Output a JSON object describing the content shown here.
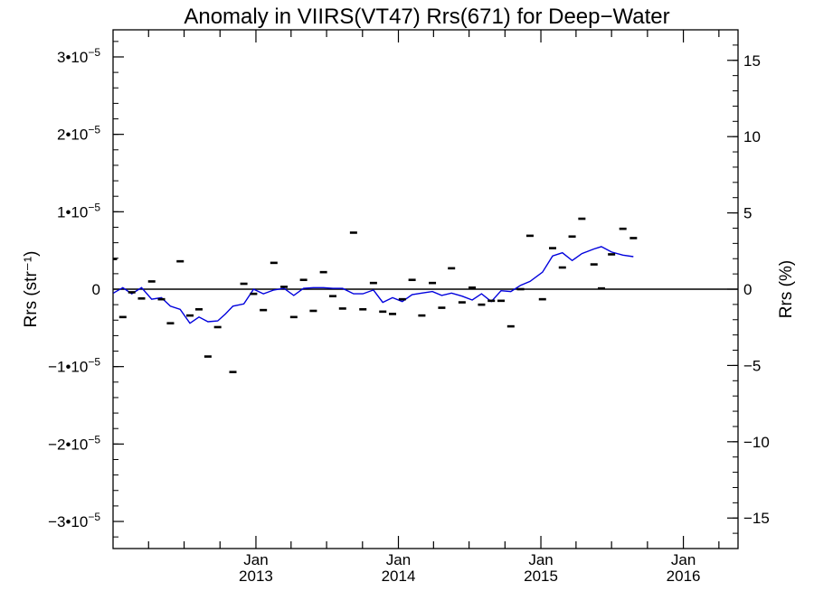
{
  "chart_data": {
    "type": "line",
    "title": "Anomaly in VIIRS(VT47) Rrs(671) for Deep−Water",
    "ylabel_left": "Rrs (str⁻¹)",
    "ylabel_right": "Rrs (%)",
    "xlabel": "",
    "x_axis": {
      "type": "date",
      "range": [
        "2012-01-01",
        "2016-05-20"
      ],
      "tick_labels": [
        {
          "line1": "Jan",
          "line2": "2013",
          "date": "2013-01-01"
        },
        {
          "line1": "Jan",
          "line2": "2014",
          "date": "2014-01-01"
        },
        {
          "line1": "Jan",
          "line2": "2015",
          "date": "2015-01-01"
        },
        {
          "line1": "Jan",
          "line2": "2016",
          "date": "2016-01-01"
        }
      ]
    },
    "y_left": {
      "range": [
        -3.35e-05,
        3.35e-05
      ],
      "ticks": [
        {
          "value": 3e-05,
          "mant": "3",
          "exp": "−5"
        },
        {
          "value": 2e-05,
          "mant": "2",
          "exp": "−5"
        },
        {
          "value": 1e-05,
          "mant": "1",
          "exp": "−5"
        },
        {
          "value": 0,
          "mant": "0",
          "exp": ""
        },
        {
          "value": -1e-05,
          "mant": "−1",
          "exp": "−5"
        },
        {
          "value": -2e-05,
          "mant": "−2",
          "exp": "−5"
        },
        {
          "value": -3e-05,
          "mant": "−3",
          "exp": "−5"
        }
      ]
    },
    "y_right": {
      "range": [
        -17,
        17
      ],
      "ticks": [
        {
          "value": 15,
          "label": "15"
        },
        {
          "value": 10,
          "label": "10"
        },
        {
          "value": 5,
          "label": "5"
        },
        {
          "value": 0,
          "label": "0"
        },
        {
          "value": -5,
          "label": "−5"
        },
        {
          "value": -10,
          "label": "−10"
        },
        {
          "value": -15,
          "label": "−15"
        }
      ]
    },
    "grid": false,
    "reference_line": 0,
    "series": [
      {
        "kind": "points",
        "values_left_axis": [
          {
            "x": "2012-01-02",
            "y": 3.9e-06
          },
          {
            "x": "2012-01-26",
            "y": -3.6e-06
          },
          {
            "x": "2012-02-18",
            "y": -4e-07
          },
          {
            "x": "2012-03-14",
            "y": -1.2e-06
          },
          {
            "x": "2012-04-09",
            "y": 1e-06
          },
          {
            "x": "2012-05-04",
            "y": -1.3e-06
          },
          {
            "x": "2012-05-27",
            "y": -4.4e-06
          },
          {
            "x": "2012-06-21",
            "y": 3.6e-06
          },
          {
            "x": "2012-07-16",
            "y": -3.4e-06
          },
          {
            "x": "2012-08-08",
            "y": -2.6e-06
          },
          {
            "x": "2012-08-31",
            "y": -8.7e-06
          },
          {
            "x": "2012-09-25",
            "y": -4.9e-06
          },
          {
            "x": "2012-11-03",
            "y": -1.07e-05
          },
          {
            "x": "2012-12-01",
            "y": 7e-07
          },
          {
            "x": "2012-12-26",
            "y": -6e-07
          },
          {
            "x": "2013-01-20",
            "y": -2.7e-06
          },
          {
            "x": "2013-02-16",
            "y": 3.4e-06
          },
          {
            "x": "2013-03-14",
            "y": 3e-07
          },
          {
            "x": "2013-04-08",
            "y": -3.6e-06
          },
          {
            "x": "2013-05-03",
            "y": 1.2e-06
          },
          {
            "x": "2013-05-28",
            "y": -2.8e-06
          },
          {
            "x": "2013-06-23",
            "y": 2.2e-06
          },
          {
            "x": "2013-07-17",
            "y": -9e-07
          },
          {
            "x": "2013-08-11",
            "y": -2.5e-06
          },
          {
            "x": "2013-09-08",
            "y": 7.3e-06
          },
          {
            "x": "2013-10-02",
            "y": -2.6e-06
          },
          {
            "x": "2013-10-29",
            "y": 8e-07
          },
          {
            "x": "2013-11-22",
            "y": -2.9e-06
          },
          {
            "x": "2013-12-17",
            "y": -3.2e-06
          },
          {
            "x": "2014-01-11",
            "y": -1.3e-06
          },
          {
            "x": "2014-02-05",
            "y": 1.2e-06
          },
          {
            "x": "2014-03-02",
            "y": -3.4e-06
          },
          {
            "x": "2014-03-29",
            "y": 8e-07
          },
          {
            "x": "2014-04-22",
            "y": -2.4e-06
          },
          {
            "x": "2014-05-17",
            "y": 2.7e-06
          },
          {
            "x": "2014-06-13",
            "y": -1.7e-06
          },
          {
            "x": "2014-07-09",
            "y": 2e-07
          },
          {
            "x": "2014-08-02",
            "y": -2e-06
          },
          {
            "x": "2014-08-27",
            "y": -1.5e-06
          },
          {
            "x": "2014-09-21",
            "y": -1.5e-06
          },
          {
            "x": "2014-10-16",
            "y": -4.8e-06
          },
          {
            "x": "2014-11-10",
            "y": 0
          },
          {
            "x": "2014-12-04",
            "y": 6.9e-06
          },
          {
            "x": "2015-01-05",
            "y": -1.3e-06
          },
          {
            "x": "2015-01-31",
            "y": 5.3e-06
          },
          {
            "x": "2015-02-25",
            "y": 2.8e-06
          },
          {
            "x": "2015-03-22",
            "y": 6.8e-06
          },
          {
            "x": "2015-04-16",
            "y": 9.1e-06
          },
          {
            "x": "2015-05-17",
            "y": 3.2e-06
          },
          {
            "x": "2015-06-05",
            "y": 1e-07
          },
          {
            "x": "2015-07-01",
            "y": 4.5e-06
          },
          {
            "x": "2015-07-30",
            "y": 7.8e-06
          },
          {
            "x": "2015-08-26",
            "y": 6.6e-06
          }
        ]
      },
      {
        "kind": "line",
        "color": "#0000dd",
        "values_left_axis": [
          {
            "x": "2012-01-02",
            "y": -5e-07
          },
          {
            "x": "2012-01-26",
            "y": 2e-07
          },
          {
            "x": "2012-02-18",
            "y": -6e-07
          },
          {
            "x": "2012-03-14",
            "y": 2e-07
          },
          {
            "x": "2012-04-09",
            "y": -1.3e-06
          },
          {
            "x": "2012-05-04",
            "y": -1.1e-06
          },
          {
            "x": "2012-05-27",
            "y": -2.2e-06
          },
          {
            "x": "2012-06-21",
            "y": -2.6e-06
          },
          {
            "x": "2012-07-16",
            "y": -4.4e-06
          },
          {
            "x": "2012-08-08",
            "y": -3.6e-06
          },
          {
            "x": "2012-08-31",
            "y": -4.2e-06
          },
          {
            "x": "2012-09-25",
            "y": -4.1e-06
          },
          {
            "x": "2012-10-15",
            "y": -3.2e-06
          },
          {
            "x": "2012-11-03",
            "y": -2.2e-06
          },
          {
            "x": "2012-12-01",
            "y": -1.9e-06
          },
          {
            "x": "2012-12-26",
            "y": 0
          },
          {
            "x": "2013-01-20",
            "y": -6e-07
          },
          {
            "x": "2013-02-16",
            "y": -1e-07
          },
          {
            "x": "2013-03-14",
            "y": 1e-07
          },
          {
            "x": "2013-04-08",
            "y": -8e-07
          },
          {
            "x": "2013-05-03",
            "y": 1e-07
          },
          {
            "x": "2013-05-28",
            "y": 2e-07
          },
          {
            "x": "2013-06-23",
            "y": 2e-07
          },
          {
            "x": "2013-07-17",
            "y": 1e-07
          },
          {
            "x": "2013-08-11",
            "y": 1e-07
          },
          {
            "x": "2013-09-08",
            "y": -6e-07
          },
          {
            "x": "2013-10-02",
            "y": -6e-07
          },
          {
            "x": "2013-10-29",
            "y": -1e-07
          },
          {
            "x": "2013-11-22",
            "y": -1.7e-06
          },
          {
            "x": "2013-12-17",
            "y": -1.1e-06
          },
          {
            "x": "2014-01-11",
            "y": -1.6e-06
          },
          {
            "x": "2014-02-05",
            "y": -7e-07
          },
          {
            "x": "2014-03-02",
            "y": -5e-07
          },
          {
            "x": "2014-03-29",
            "y": -3e-07
          },
          {
            "x": "2014-04-22",
            "y": -8e-07
          },
          {
            "x": "2014-05-17",
            "y": -5e-07
          },
          {
            "x": "2014-06-13",
            "y": -9e-07
          },
          {
            "x": "2014-07-09",
            "y": -1.4e-06
          },
          {
            "x": "2014-08-02",
            "y": -6e-07
          },
          {
            "x": "2014-08-27",
            "y": -1.6e-06
          },
          {
            "x": "2014-09-21",
            "y": -2e-07
          },
          {
            "x": "2014-10-16",
            "y": -3e-07
          },
          {
            "x": "2014-11-10",
            "y": 5e-07
          },
          {
            "x": "2014-12-04",
            "y": 1e-06
          },
          {
            "x": "2015-01-05",
            "y": 2.2e-06
          },
          {
            "x": "2015-01-31",
            "y": 4.3e-06
          },
          {
            "x": "2015-02-25",
            "y": 4.7e-06
          },
          {
            "x": "2015-03-22",
            "y": 3.7e-06
          },
          {
            "x": "2015-04-16",
            "y": 4.6e-06
          },
          {
            "x": "2015-05-17",
            "y": 5.2e-06
          },
          {
            "x": "2015-06-05",
            "y": 5.5e-06
          },
          {
            "x": "2015-07-01",
            "y": 4.8e-06
          },
          {
            "x": "2015-07-30",
            "y": 4.4e-06
          },
          {
            "x": "2015-08-26",
            "y": 4.2e-06
          }
        ]
      }
    ]
  }
}
